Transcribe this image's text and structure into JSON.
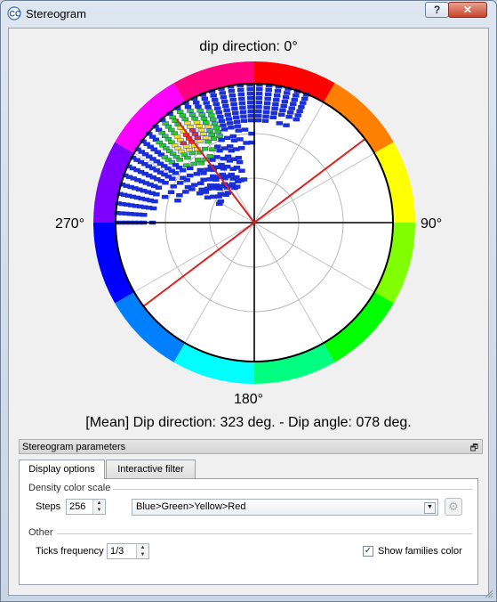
{
  "window": {
    "title": "Stereogram",
    "help_glyph": "?",
    "close_glyph": "✕"
  },
  "stereogram": {
    "north_label": "dip direction: 0°",
    "east_label": "90°",
    "south_label": "180°",
    "west_label": "270°",
    "mean_label": "[Mean] Dip direction: 323 deg. - Dip angle: 078 deg.",
    "mean_dip_direction_deg": 323,
    "mean_dip_angle_deg": 78,
    "density_colors": {
      "low": "#1a2fe0",
      "mid": "#2ec82e",
      "high": "#f0e020",
      "peak": "#e83020"
    },
    "mean_line_color": "#e02020"
  },
  "params": {
    "header": "Stereogram parameters",
    "float_glyph": "🗗",
    "tabs": {
      "display": "Display options",
      "filter": "Interactive filter"
    },
    "density_group": "Density color scale",
    "steps_label": "Steps",
    "steps_value": "256",
    "color_scale_value": "Blue>Green>Yellow>Red",
    "gear_glyph": "⚙",
    "other_group": "Other",
    "ticks_label": "Ticks frequency",
    "ticks_value": "1/3",
    "show_families_label": "Show families color",
    "show_families_checked": "✓"
  }
}
